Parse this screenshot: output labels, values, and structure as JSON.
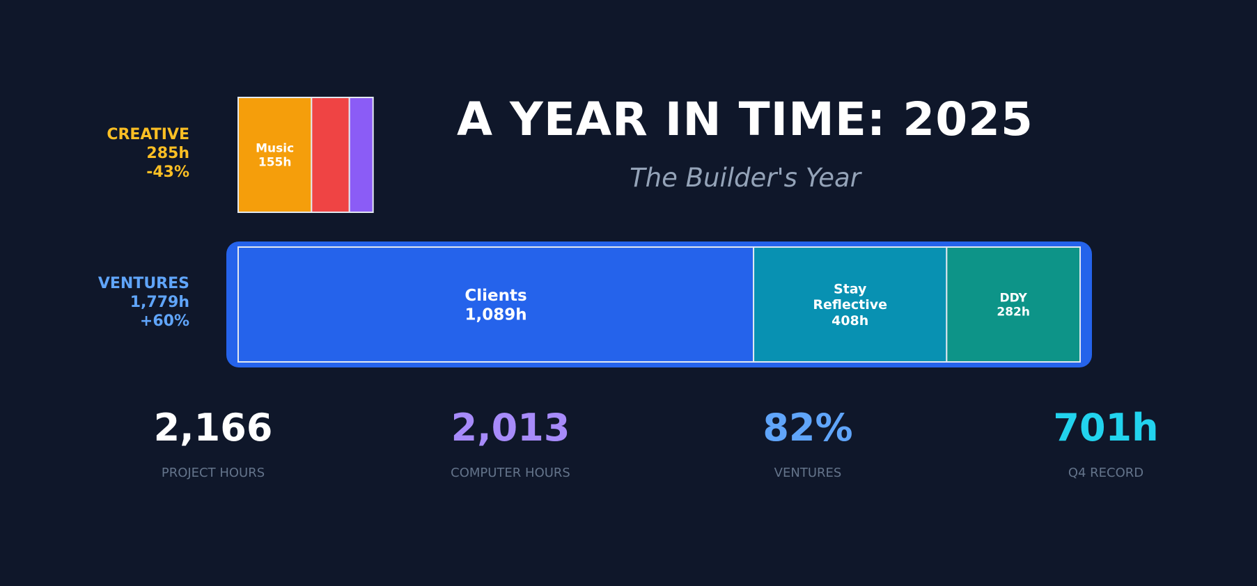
{
  "header": {
    "title": "A YEAR IN TIME: 2025",
    "subtitle": "The Builder's Year"
  },
  "chart_data": {
    "type": "treemap-bar",
    "groups": [
      {
        "name": "CREATIVE",
        "total_label": "285h",
        "change_label": "-43%",
        "color": "#fbbf24",
        "total": 285,
        "segments": [
          {
            "name": "Music",
            "value_label": "155h",
            "value": 155,
            "color": "#f59e0b"
          },
          {
            "name": "",
            "value_label": "",
            "value": 80,
            "color": "#ef4444"
          },
          {
            "name": "",
            "value_label": "",
            "value": 50,
            "color": "#8b5cf6"
          }
        ]
      },
      {
        "name": "VENTURES",
        "total_label": "1,779h",
        "change_label": "+60%",
        "color": "#60a5fa",
        "frame_color": "#2563eb",
        "total": 1779,
        "segments": [
          {
            "name": "Clients",
            "value_label": "1,089h",
            "value": 1089,
            "color": "#2563eb"
          },
          {
            "name": "Stay Reflective",
            "value_label": "408h",
            "value": 408,
            "color": "#0891b2"
          },
          {
            "name": "DDY",
            "value_label": "282h",
            "value": 282,
            "color": "#0d9488"
          }
        ]
      }
    ]
  },
  "stats": [
    {
      "value": "2,166",
      "label": "PROJECT HOURS",
      "color": "#ffffff"
    },
    {
      "value": "2,013",
      "label": "COMPUTER HOURS",
      "color": "#a78bfa"
    },
    {
      "value": "82%",
      "label": "VENTURES",
      "color": "#60a5fa"
    },
    {
      "value": "701h",
      "label": "Q4 RECORD",
      "color": "#22d3ee"
    }
  ]
}
